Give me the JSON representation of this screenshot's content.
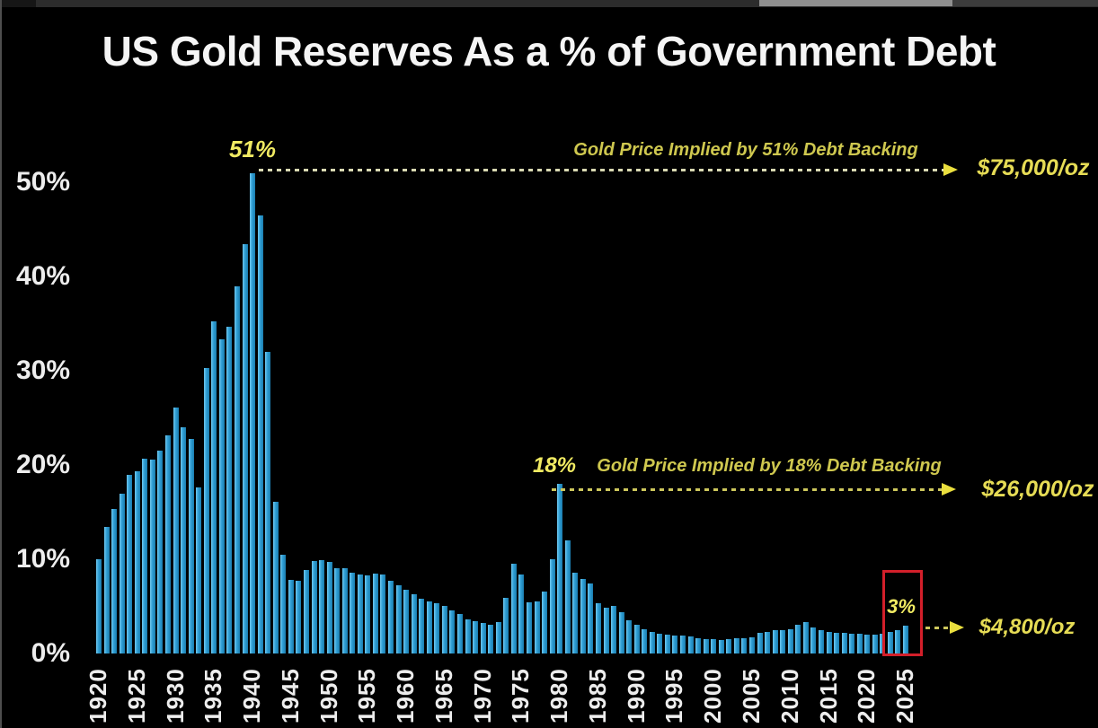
{
  "page": {
    "background": "#000000",
    "description": "Full-screen dark bar chart slide"
  },
  "colors": {
    "background": "#000000",
    "bar_blue": "#2f9ed4",
    "bar_highlight": "#72c9ef",
    "title_white": "#f5f5f5",
    "axis_text": "#ededed",
    "annotation_yellow": "#f0ea62",
    "line_label_olive": "#cfc84f",
    "price_yellow": "#e6dc55",
    "dash_cream": "#d9d9b2",
    "dash_yellow": "#cdc75c",
    "arrow_yellow": "#eadf3e",
    "highlight_box_red": "#d31f2a"
  },
  "chart_data": {
    "type": "bar",
    "title": "US Gold Reserves As a % of Government Debt",
    "xlabel": "",
    "ylabel": "",
    "unit": "%",
    "grid": false,
    "legend": "none",
    "years_range": [
      1920,
      2025
    ],
    "x_step_years": 1,
    "ylim": [
      0,
      55
    ],
    "ytick_values": [
      0,
      10,
      20,
      30,
      40,
      50
    ],
    "ytick_labels": [
      "0%",
      "10%",
      "20%",
      "30%",
      "40%",
      "50%"
    ],
    "xtick_labels": [
      "1920",
      "1925",
      "1930",
      "1935",
      "1940",
      "1945",
      "1950",
      "1955",
      "1960",
      "1965",
      "1970",
      "1975",
      "1980",
      "1985",
      "1990",
      "1995",
      "2000",
      "2005",
      "2010",
      "2015",
      "2020",
      "2025"
    ],
    "values": [
      10,
      13.4,
      15.3,
      17,
      19,
      19.3,
      20.7,
      20.6,
      21.5,
      23.1,
      26.1,
      24,
      22.8,
      17.6,
      30.3,
      35.2,
      33.3,
      34.7,
      39,
      43.4,
      51,
      46.5,
      32,
      16.1,
      10.5,
      7.8,
      7.7,
      8.9,
      9.8,
      9.9,
      9.7,
      9.1,
      9.1,
      8.6,
      8.4,
      8.3,
      8.5,
      8.4,
      7.7,
      7.2,
      6.8,
      6.3,
      5.8,
      5.5,
      5.3,
      5.1,
      4.6,
      4.2,
      3.6,
      3.4,
      3.2,
      3.1,
      3.3,
      5.9,
      9.5,
      8.4,
      5.4,
      5.5,
      6.6,
      10,
      18,
      12,
      8.6,
      7.9,
      7.4,
      5.3,
      4.9,
      5.1,
      4.4,
      3.5,
      3.1,
      2.6,
      2.3,
      2.1,
      2,
      1.9,
      1.9,
      1.8,
      1.6,
      1.5,
      1.5,
      1.4,
      1.5,
      1.6,
      1.6,
      1.7,
      2.2,
      2.3,
      2.5,
      2.5,
      2.6,
      3.1,
      3.3,
      2.8,
      2.5,
      2.3,
      2.2,
      2.2,
      2.1,
      2.1,
      2,
      2,
      2.1,
      2.3,
      2.5,
      3
    ],
    "highlighted_years": [
      2023,
      2024,
      2025
    ],
    "annotations": [
      {
        "year": 1940,
        "value_label": "51%",
        "text": "Gold Price Implied by 51% Debt Backing",
        "price": "$75,000/oz"
      },
      {
        "year": 1980,
        "value_label": "18%",
        "text": "Gold Price Implied by 18% Debt Backing",
        "price": "$26,000/oz"
      },
      {
        "year": 2025,
        "value_label": "3%",
        "text": "",
        "price": "$4,800/oz"
      }
    ]
  }
}
